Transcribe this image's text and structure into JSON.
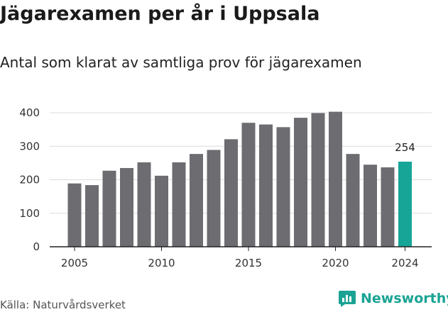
{
  "title": "Jägarexamen per år i Uppsala",
  "subtitle": "Antal som klarat av samtliga prov för jägarexamen",
  "source": "Källa: Naturvårdsverket",
  "brand": {
    "name": "Newsworthy",
    "icon": "newsworthy-chart-bubble-icon"
  },
  "colors": {
    "bar": "#6d6c71",
    "highlight": "#16a597",
    "grid": "#dcdcdc",
    "brand": "#1aa394"
  },
  "chart_data": {
    "type": "bar",
    "x": [
      2005,
      2006,
      2007,
      2008,
      2009,
      2010,
      2011,
      2012,
      2013,
      2014,
      2015,
      2016,
      2017,
      2018,
      2019,
      2020,
      2021,
      2022,
      2023,
      2024
    ],
    "values": [
      189,
      184,
      227,
      235,
      252,
      212,
      252,
      277,
      289,
      321,
      370,
      365,
      357,
      385,
      399,
      403,
      277,
      245,
      237,
      254
    ],
    "highlight_index": 19,
    "data_labels": [
      {
        "x": 2024,
        "text": "254"
      }
    ],
    "xticks": [
      2005,
      2010,
      2015,
      2020,
      2024
    ],
    "yticks": [
      0,
      100,
      200,
      300,
      400
    ],
    "ylim": [
      0,
      420
    ],
    "grid": "horizontal",
    "xlabel": "",
    "ylabel": ""
  }
}
